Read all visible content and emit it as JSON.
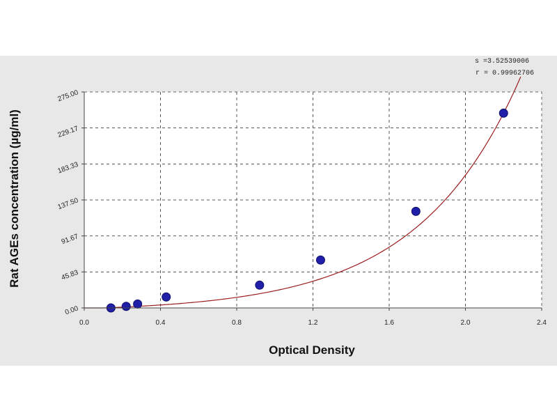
{
  "chart_data": {
    "type": "scatter",
    "xlabel": "Optical Density",
    "ylabel": "Rat AGEs concentration (µg/ml)",
    "xlim": [
      0.0,
      2.4
    ],
    "ylim": [
      0.0,
      275.0
    ],
    "x_ticks": [
      "0.0",
      "0.4",
      "0.8",
      "1.2",
      "1.6",
      "2.0",
      "2.4"
    ],
    "x_tick_values": [
      0.0,
      0.4,
      0.8,
      1.2,
      1.6,
      2.0,
      2.4
    ],
    "y_ticks": [
      "0.00",
      "45.83",
      "91.67",
      "137.50",
      "183.33",
      "229.17",
      "275.00"
    ],
    "y_tick_values": [
      0.0,
      45.83,
      91.67,
      137.5,
      183.33,
      229.17,
      275.0
    ],
    "grid": true,
    "fit_line": true,
    "annotations": [
      "s =3.52539006",
      "r = 0.99962706"
    ],
    "series": [
      {
        "x": [
          0.14,
          0.22,
          0.28,
          0.43,
          0.92,
          1.24,
          1.74,
          2.2
        ],
        "y": [
          0.0,
          2.0,
          5.0,
          14.0,
          29.0,
          61.0,
          123.0,
          248.0
        ]
      }
    ],
    "colors": {
      "point": "#1f1fa8",
      "point_outline": "#10106a",
      "fit": "#9b1c1c",
      "grid": "#555555",
      "plot_bg": "#ffffff",
      "panel_bg": "#e8e8e8"
    }
  }
}
